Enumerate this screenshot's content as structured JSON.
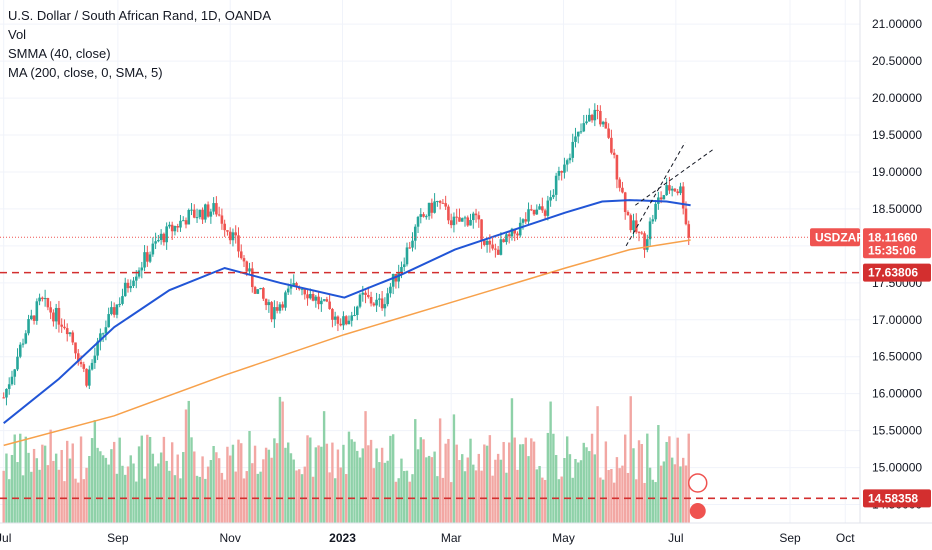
{
  "legend": {
    "line1": "U.S. Dollar / South African Rand, 1D, OANDA",
    "line2": "Vol",
    "line3": "SMMA (40, close)",
    "line4": "MA (200, close, 0, SMA, 5)"
  },
  "price_tag": {
    "symbol": "USDZAR",
    "price": "18.11660",
    "countdown": "15:35:06"
  },
  "hline_tags": [
    "17.63806",
    "14.58358"
  ],
  "colors": {
    "up": "#26a69a",
    "down": "#ef5350",
    "smma": "#2155d6",
    "ma": "#f7a14b",
    "hline": "#d32f2f",
    "vol_up": "#8ed1a8",
    "vol_down": "#f2a7a3",
    "grid": "#f0f3fa"
  },
  "chart_data": {
    "type": "candlestick",
    "ylim": [
      14.25,
      21.3
    ],
    "y_ticks": [
      "21.00000",
      "20.50000",
      "20.00000",
      "19.50000",
      "19.00000",
      "18.50000",
      "18.00000",
      "17.50000",
      "17.00000",
      "16.50000",
      "16.00000",
      "15.50000",
      "15.00000",
      "14.50000"
    ],
    "x_ticks": [
      "Jul",
      "Sep",
      "Nov",
      "2023",
      "Mar",
      "May",
      "Jul",
      "Sep",
      "Oct"
    ],
    "x_tick_days": [
      0,
      62,
      123,
      184,
      243,
      304,
      365,
      427,
      457
    ],
    "x_range": [
      -2,
      465
    ],
    "horizontal_lines": [
      17.63806,
      14.58358
    ],
    "key_points": [
      [
        0,
        15.95
      ],
      [
        12,
        16.85
      ],
      [
        20,
        17.25
      ],
      [
        35,
        16.9
      ],
      [
        45,
        16.2
      ],
      [
        55,
        16.9
      ],
      [
        70,
        17.6
      ],
      [
        85,
        18.1
      ],
      [
        100,
        18.4
      ],
      [
        115,
        18.5
      ],
      [
        125,
        18.1
      ],
      [
        135,
        17.5
      ],
      [
        145,
        17.1
      ],
      [
        160,
        17.5
      ],
      [
        175,
        17.15
      ],
      [
        185,
        16.95
      ],
      [
        195,
        17.3
      ],
      [
        205,
        17.2
      ],
      [
        215,
        17.7
      ],
      [
        225,
        18.3
      ],
      [
        235,
        18.6
      ],
      [
        245,
        18.3
      ],
      [
        255,
        18.4
      ],
      [
        265,
        17.9
      ],
      [
        275,
        18.1
      ],
      [
        285,
        18.4
      ],
      [
        295,
        18.5
      ],
      [
        305,
        19.2
      ],
      [
        315,
        19.6
      ],
      [
        322,
        19.85
      ],
      [
        330,
        19.3
      ],
      [
        340,
        18.3
      ],
      [
        348,
        18.05
      ],
      [
        355,
        18.6
      ],
      [
        362,
        18.8
      ],
      [
        368,
        18.75
      ],
      [
        372,
        18.11
      ]
    ],
    "smma": [
      [
        0,
        15.6
      ],
      [
        30,
        16.2
      ],
      [
        60,
        16.9
      ],
      [
        90,
        17.4
      ],
      [
        120,
        17.7
      ],
      [
        150,
        17.5
      ],
      [
        185,
        17.3
      ],
      [
        215,
        17.6
      ],
      [
        245,
        17.95
      ],
      [
        275,
        18.2
      ],
      [
        305,
        18.45
      ],
      [
        325,
        18.6
      ],
      [
        340,
        18.62
      ],
      [
        360,
        18.6
      ],
      [
        373,
        18.55
      ]
    ],
    "ma200": [
      [
        0,
        15.3
      ],
      [
        60,
        15.7
      ],
      [
        120,
        16.25
      ],
      [
        185,
        16.8
      ],
      [
        245,
        17.25
      ],
      [
        305,
        17.7
      ],
      [
        340,
        17.95
      ],
      [
        373,
        18.08
      ]
    ],
    "channel": [
      [
        [
          338,
          18.0
        ],
        [
          370,
          19.4
        ]
      ],
      [
        [
          343,
          18.55
        ],
        [
          385,
          19.3
        ]
      ]
    ]
  }
}
